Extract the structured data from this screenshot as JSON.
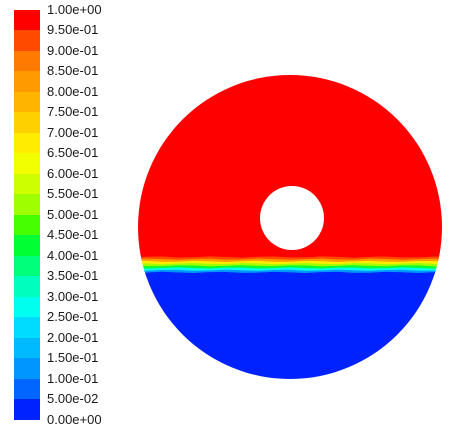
{
  "chart_data": {
    "type": "heatmap",
    "title": "",
    "colorbar": {
      "min": 0.0,
      "max": 1.0,
      "tick_labels": [
        "1.00e+00",
        "9.50e-01",
        "9.00e-01",
        "8.50e-01",
        "8.00e-01",
        "7.50e-01",
        "7.00e-01",
        "6.50e-01",
        "6.00e-01",
        "5.50e-01",
        "5.00e-01",
        "4.50e-01",
        "4.00e-01",
        "3.50e-01",
        "3.00e-01",
        "2.50e-01",
        "2.00e-01",
        "1.50e-01",
        "1.00e-01",
        "5.00e-02",
        "0.00e+00"
      ],
      "colors": [
        "#ff0000",
        "#ff4a00",
        "#ff7a00",
        "#ff9b00",
        "#ffb400",
        "#ffd000",
        "#ffec00",
        "#f2ff00",
        "#cdff00",
        "#9fff00",
        "#46ff00",
        "#00ff33",
        "#00ff7a",
        "#00ffbf",
        "#00ffee",
        "#00dcff",
        "#00baff",
        "#0096ff",
        "#0066ff",
        "#0022ff"
      ]
    },
    "field": {
      "geometry": "annulus",
      "upper_region_value": 1.0,
      "lower_region_value": 0.0,
      "interface_band_values": [
        0.95,
        0.85,
        0.7,
        0.55,
        0.45,
        0.3,
        0.15,
        0.05
      ]
    }
  }
}
